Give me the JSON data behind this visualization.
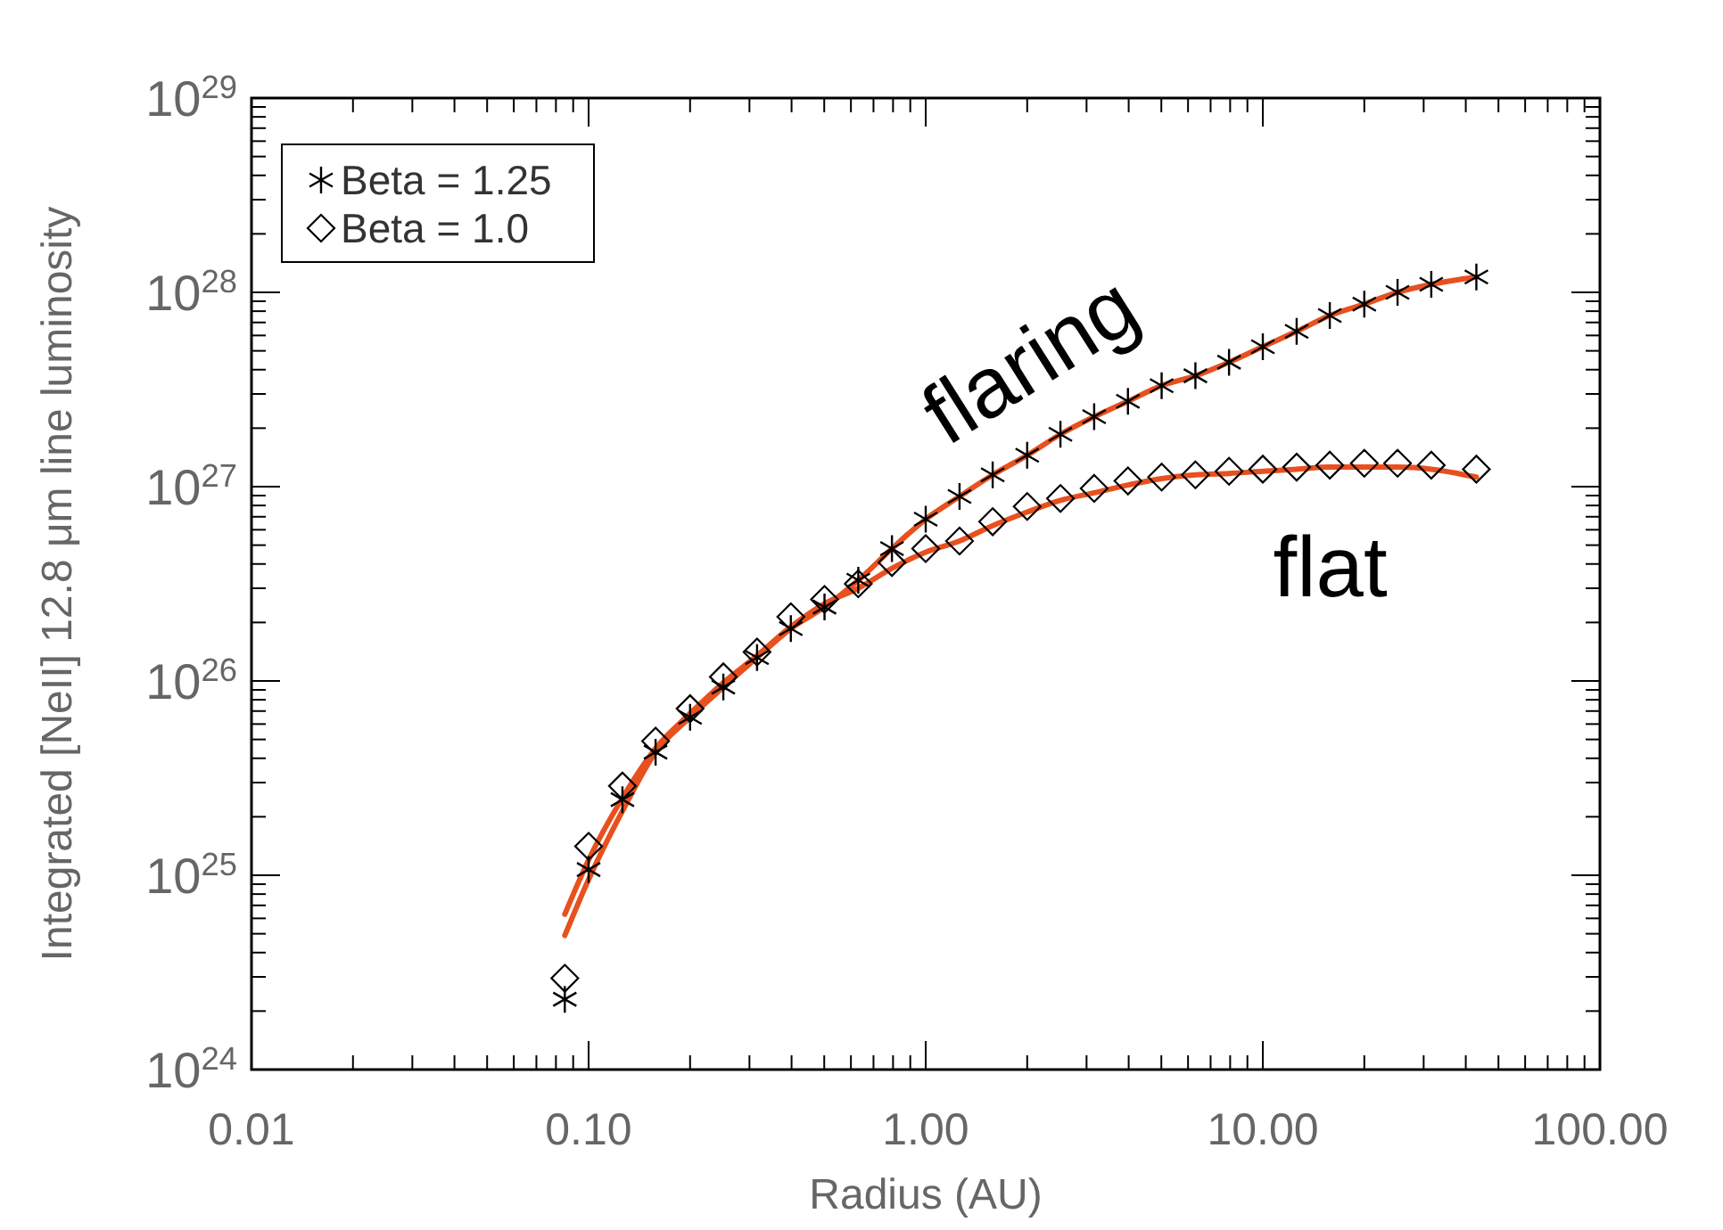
{
  "chart_data": {
    "type": "scatter",
    "xlabel": "Radius (AU)",
    "ylabel": "Integrated [NeII] 12.8 μm line luminosity",
    "log": "xy",
    "grid": false,
    "legend": "top left",
    "xlim": [
      0.01,
      100
    ],
    "ylim": [
      1e+24,
      1e+29
    ],
    "xticks": [
      {
        "value": 0.01,
        "label": "0.01"
      },
      {
        "value": 0.02,
        "label": null
      },
      {
        "value": 0.03,
        "label": null
      },
      {
        "value": 0.04,
        "label": null
      },
      {
        "value": 0.05,
        "label": null
      },
      {
        "value": 0.06,
        "label": null
      },
      {
        "value": 0.07,
        "label": null
      },
      {
        "value": 0.08,
        "label": null
      },
      {
        "value": 0.09,
        "label": null
      },
      {
        "value": 0.1,
        "label": "0.10"
      },
      {
        "value": 0.2,
        "label": null
      },
      {
        "value": 0.3,
        "label": null
      },
      {
        "value": 0.4,
        "label": null
      },
      {
        "value": 0.5,
        "label": null
      },
      {
        "value": 0.6,
        "label": null
      },
      {
        "value": 0.7,
        "label": null
      },
      {
        "value": 0.8,
        "label": null
      },
      {
        "value": 0.9,
        "label": null
      },
      {
        "value": 1,
        "label": "1.00"
      },
      {
        "value": 2,
        "label": null
      },
      {
        "value": 3,
        "label": null
      },
      {
        "value": 4,
        "label": null
      },
      {
        "value": 5,
        "label": null
      },
      {
        "value": 6,
        "label": null
      },
      {
        "value": 7,
        "label": null
      },
      {
        "value": 8,
        "label": null
      },
      {
        "value": 9,
        "label": null
      },
      {
        "value": 10,
        "label": "10.00"
      },
      {
        "value": 20,
        "label": null
      },
      {
        "value": 30,
        "label": null
      },
      {
        "value": 40,
        "label": null
      },
      {
        "value": 50,
        "label": null
      },
      {
        "value": 60,
        "label": null
      },
      {
        "value": 70,
        "label": null
      },
      {
        "value": 80,
        "label": null
      },
      {
        "value": 90,
        "label": null
      },
      {
        "value": 100,
        "label": "100.00"
      }
    ],
    "yticks": [
      {
        "value": 1e+24,
        "label": "10$^{24}$"
      },
      {
        "value": 2e+24,
        "label": null
      },
      {
        "value": 3e+24,
        "label": null
      },
      {
        "value": 4e+24,
        "label": null
      },
      {
        "value": 5e+24,
        "label": null
      },
      {
        "value": 6e+24,
        "label": null
      },
      {
        "value": 7e+24,
        "label": null
      },
      {
        "value": 8e+24,
        "label": null
      },
      {
        "value": 9e+24,
        "label": null
      },
      {
        "value": 1e+25,
        "label": "10$^{25}$"
      },
      {
        "value": 2e+25,
        "label": null
      },
      {
        "value": 3e+25,
        "label": null
      },
      {
        "value": 4e+25,
        "label": null
      },
      {
        "value": 5e+25,
        "label": null
      },
      {
        "value": 6e+25,
        "label": null
      },
      {
        "value": 7e+25,
        "label": null
      },
      {
        "value": 8e+25,
        "label": null
      },
      {
        "value": 9e+25,
        "label": null
      },
      {
        "value": 1e+26,
        "label": "10$^{26}$"
      },
      {
        "value": 2e+26,
        "label": null
      },
      {
        "value": 3e+26,
        "label": null
      },
      {
        "value": 4e+26,
        "label": null
      },
      {
        "value": 5e+26,
        "label": null
      },
      {
        "value": 6e+26,
        "label": null
      },
      {
        "value": 7e+26,
        "label": null
      },
      {
        "value": 8e+26,
        "label": null
      },
      {
        "value": 9e+26,
        "label": null
      },
      {
        "value": 1e+27,
        "label": "10$^{27}$"
      },
      {
        "value": 2e+27,
        "label": null
      },
      {
        "value": 3e+27,
        "label": null
      },
      {
        "value": 4e+27,
        "label": null
      },
      {
        "value": 5e+27,
        "label": null
      },
      {
        "value": 6e+27,
        "label": null
      },
      {
        "value": 7e+27,
        "label": null
      },
      {
        "value": 8e+27,
        "label": null
      },
      {
        "value": 9e+27,
        "label": null
      },
      {
        "value": 1e+28,
        "label": "10$^{28}$"
      },
      {
        "value": 2e+28,
        "label": null
      },
      {
        "value": 3e+28,
        "label": null
      },
      {
        "value": 4e+28,
        "label": null
      },
      {
        "value": 5e+28,
        "label": null
      },
      {
        "value": 6e+28,
        "label": null
      },
      {
        "value": 7e+28,
        "label": null
      },
      {
        "value": 8e+28,
        "label": null
      },
      {
        "value": 9e+28,
        "label": null
      },
      {
        "value": 1e+29,
        "label": "10$^{29}$"
      }
    ],
    "x": [
      0.085,
      0.1,
      0.126,
      0.158,
      0.2,
      0.251,
      0.316,
      0.398,
      0.501,
      0.631,
      0.794,
      1,
      1.26,
      1.58,
      2.0,
      2.51,
      3.16,
      3.98,
      5.01,
      6.31,
      7.94,
      10,
      12.6,
      15.8,
      20,
      25.1,
      31.6,
      43
    ],
    "series": [
      {
        "name": "Beta = 1.25",
        "marker": "cross",
        "color": "#000000",
        "values": [
          2.3e+24,
          1.07e+25,
          2.45e+25,
          4.3e+25,
          6.5e+25,
          9.3e+25,
          1.32e+26,
          1.86e+26,
          2.4e+26,
          3.3e+26,
          4.8e+26,
          6.8e+26,
          8.9e+26,
          1.15e+27,
          1.45e+27,
          1.86e+27,
          2.29e+27,
          2.75e+27,
          3.31e+27,
          3.72e+27,
          4.37e+27,
          5.25e+27,
          6.3e+27,
          7.6e+27,
          8.7e+27,
          1e+28,
          1.1e+28,
          1.2e+28
        ]
      },
      {
        "name": "Beta = 1.0",
        "marker": "diamond",
        "color": "#000000",
        "values": [
          2.95e+24,
          1.41e+25,
          2.88e+25,
          4.9e+25,
          7.2e+25,
          1.05e+26,
          1.41e+26,
          2.14e+26,
          2.63e+26,
          3.16e+26,
          4.07e+26,
          4.8e+26,
          5.25e+26,
          6.6e+26,
          7.9e+26,
          8.7e+26,
          9.8e+26,
          1.07e+27,
          1.12e+27,
          1.15e+27,
          1.2e+27,
          1.23e+27,
          1.26e+27,
          1.29e+27,
          1.32e+27,
          1.32e+27,
          1.29e+27,
          1.23e+27
        ]
      },
      {
        "type": "line",
        "marker": "none",
        "line_style": "solid",
        "color": "#e8501e",
        "values": [
          4.9e+24,
          9.5e+24,
          2.14e+25,
          4.3e+25,
          6.5e+25,
          9.3e+25,
          1.32e+26,
          1.86e+26,
          2.4e+26,
          3.3e+26,
          4.8e+26,
          6.8e+26,
          8.9e+26,
          1.15e+27,
          1.45e+27,
          1.86e+27,
          2.29e+27,
          2.75e+27,
          3.31e+27,
          3.72e+27,
          4.37e+27,
          5.25e+27,
          6.3e+27,
          7.6e+27,
          8.7e+27,
          1e+28,
          1.1e+28,
          1.2e+28
        ]
      },
      {
        "type": "line",
        "marker": "none",
        "line_style": "solid",
        "color": "#e8501e",
        "values": [
          6.3e+24,
          1.2e+25,
          2.5e+25,
          4.5e+25,
          6.8e+25,
          9.8e+25,
          1.35e+26,
          1.9e+26,
          2.5e+26,
          3e+26,
          3.8e+26,
          4.6e+26,
          5.25e+26,
          6.3e+26,
          7.4e+26,
          8.5e+26,
          9.3e+26,
          1.02e+27,
          1.1e+27,
          1.15e+27,
          1.17e+27,
          1.2e+27,
          1.23e+27,
          1.26e+27,
          1.26e+27,
          1.26e+27,
          1.23e+27,
          1.12e+27
        ]
      }
    ],
    "annotations": [
      "flaring",
      "flat"
    ]
  }
}
